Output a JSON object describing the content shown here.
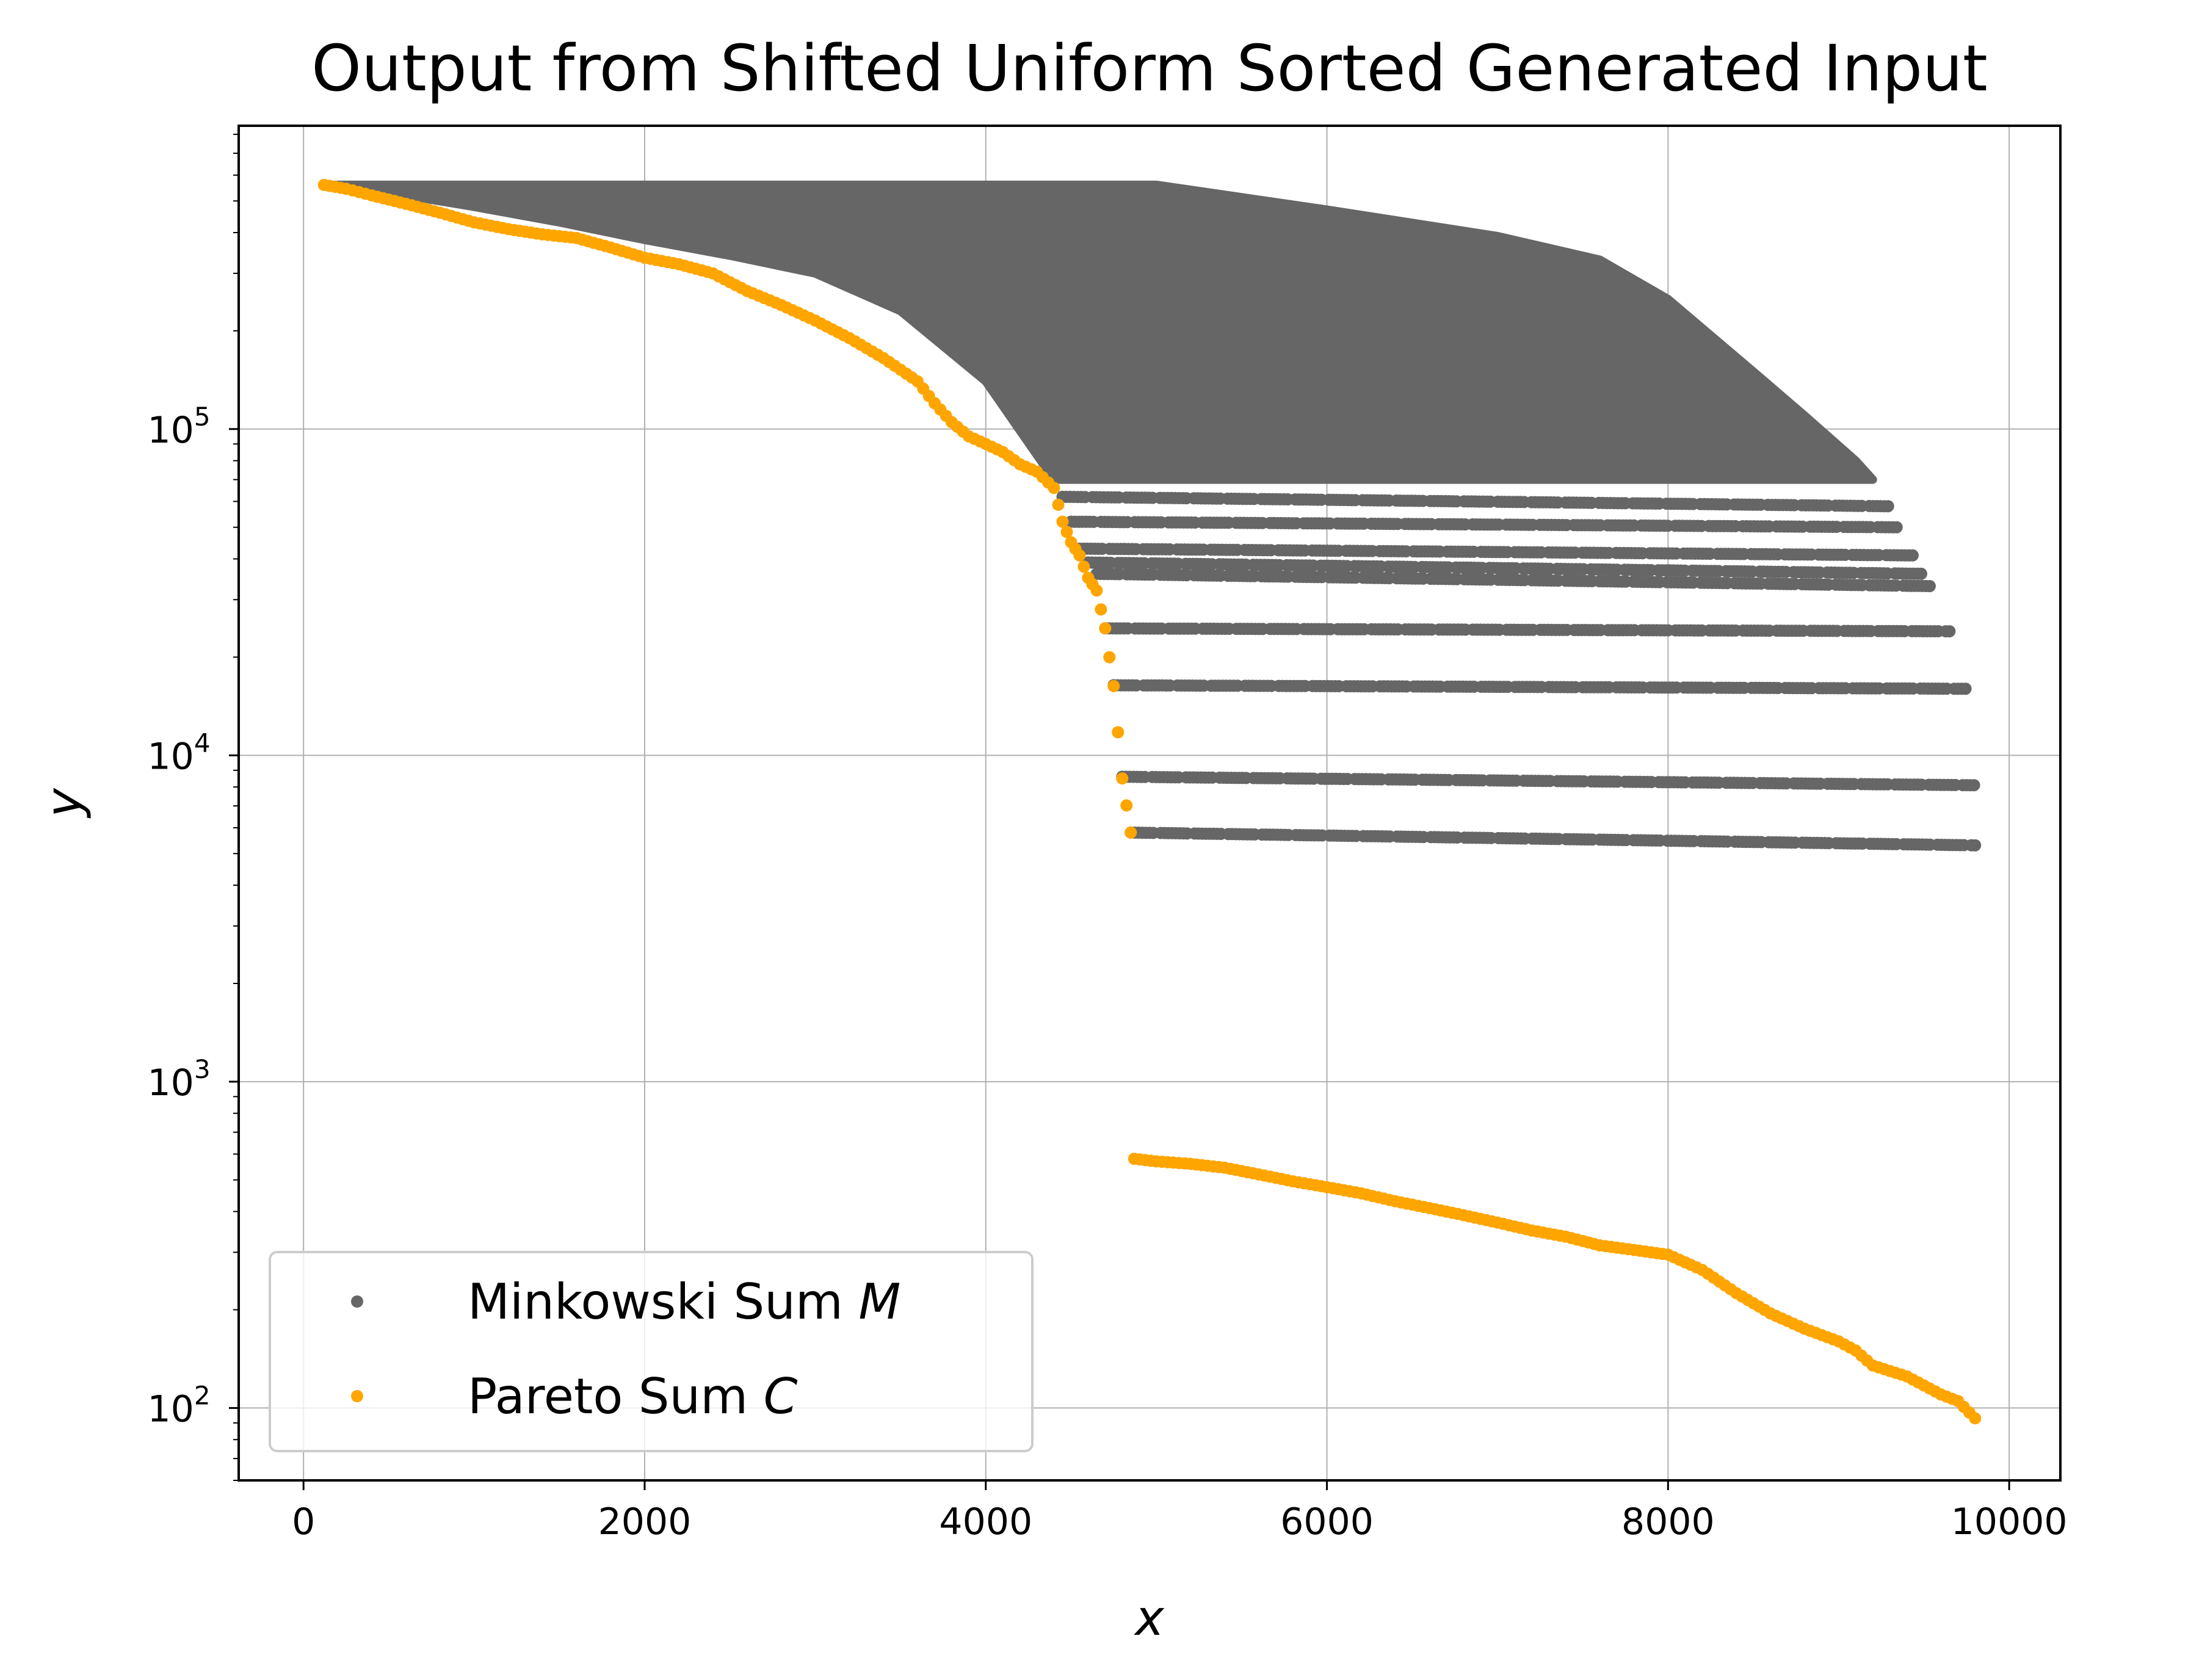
{
  "chart_data": {
    "type": "scatter",
    "title": "Output from Shifted Uniform Sorted Generated Input",
    "xlabel": "x",
    "ylabel": "y",
    "xlim": [
      -380,
      10300
    ],
    "ylim": [
      60,
      850000
    ],
    "yscale": "log",
    "grid": true,
    "legend_position": "lower-left",
    "x_ticks": [
      {
        "value": 0,
        "label": "0"
      },
      {
        "value": 2000,
        "label": "2000"
      },
      {
        "value": 4000,
        "label": "4000"
      },
      {
        "value": 6000,
        "label": "6000"
      },
      {
        "value": 8000,
        "label": "8000"
      },
      {
        "value": 10000,
        "label": "10000"
      }
    ],
    "y_ticks": [
      {
        "value": 100,
        "base": "10",
        "exp": "2"
      },
      {
        "value": 1000,
        "base": "10",
        "exp": "3"
      },
      {
        "value": 10000,
        "base": "10",
        "exp": "4"
      },
      {
        "value": 100000,
        "base": "10",
        "exp": "5"
      }
    ],
    "series": [
      {
        "name": "Minkowski Sum",
        "name_symbol": "M",
        "color": "#666666",
        "dense_region": {
          "upper_envelope": [
            [
              150,
              560000
            ],
            [
              5000,
              560000
            ],
            [
              6000,
              470000
            ],
            [
              7000,
              390000
            ],
            [
              7600,
              330000
            ],
            [
              8000,
              250000
            ],
            [
              8500,
              150000
            ],
            [
              8800,
              110000
            ],
            [
              9100,
              80000
            ],
            [
              9200,
              70000
            ],
            [
              5000,
              70000
            ],
            [
              4400,
              70000
            ],
            [
              4000,
              140000
            ],
            [
              3500,
              230000
            ],
            [
              3000,
              300000
            ],
            [
              2500,
              340000
            ],
            [
              2000,
              380000
            ],
            [
              1500,
              430000
            ],
            [
              1000,
              480000
            ],
            [
              500,
              530000
            ],
            [
              150,
              560000
            ]
          ]
        },
        "stripes": [
          {
            "y_start": 62000,
            "y_end": 58000,
            "x_start": 4450,
            "x_end": 9300
          },
          {
            "y_start": 52000,
            "y_end": 50000,
            "x_start": 4500,
            "x_end": 9350
          },
          {
            "y_start": 43000,
            "y_end": 41000,
            "x_start": 4550,
            "x_end": 9450
          },
          {
            "y_start": 39000,
            "y_end": 36000,
            "x_start": 4600,
            "x_end": 9500
          },
          {
            "y_start": 36000,
            "y_end": 33000,
            "x_start": 4650,
            "x_end": 9550
          },
          {
            "y_start": 24500,
            "y_end": 24000,
            "x_start": 4700,
            "x_end": 9650
          },
          {
            "y_start": 16400,
            "y_end": 16000,
            "x_start": 4750,
            "x_end": 9750
          },
          {
            "y_start": 8600,
            "y_end": 8100,
            "x_start": 4800,
            "x_end": 9800
          },
          {
            "y_start": 5800,
            "y_end": 5300,
            "x_start": 4850,
            "x_end": 9800
          }
        ]
      },
      {
        "name": "Pareto Sum",
        "name_symbol": "C",
        "color": "#ffa500",
        "points": [
          [
            120,
            560000
          ],
          [
            250,
            545000
          ],
          [
            400,
            520000
          ],
          [
            600,
            490000
          ],
          [
            800,
            460000
          ],
          [
            1000,
            430000
          ],
          [
            1200,
            410000
          ],
          [
            1400,
            395000
          ],
          [
            1600,
            385000
          ],
          [
            1800,
            360000
          ],
          [
            2000,
            335000
          ],
          [
            2200,
            320000
          ],
          [
            2400,
            300000
          ],
          [
            2600,
            265000
          ],
          [
            2800,
            240000
          ],
          [
            3000,
            215000
          ],
          [
            3200,
            190000
          ],
          [
            3400,
            165000
          ],
          [
            3600,
            140000
          ],
          [
            3700,
            120000
          ],
          [
            3800,
            105000
          ],
          [
            3900,
            95000
          ],
          [
            4000,
            90000
          ],
          [
            4100,
            85000
          ],
          [
            4200,
            78000
          ],
          [
            4300,
            74000
          ],
          [
            4400,
            66000
          ],
          [
            4450,
            52000
          ],
          [
            4500,
            45000
          ],
          [
            4550,
            41000
          ],
          [
            4600,
            35000
          ],
          [
            4650,
            32000
          ],
          [
            4700,
            24500
          ],
          [
            4750,
            16300
          ],
          [
            4800,
            8500
          ],
          [
            4850,
            5800
          ],
          [
            4870,
            580
          ],
          [
            5000,
            570
          ],
          [
            5200,
            560
          ],
          [
            5400,
            545
          ],
          [
            5600,
            520
          ],
          [
            5800,
            495
          ],
          [
            6000,
            475
          ],
          [
            6200,
            455
          ],
          [
            6400,
            430
          ],
          [
            6600,
            410
          ],
          [
            6800,
            390
          ],
          [
            7000,
            370
          ],
          [
            7200,
            350
          ],
          [
            7400,
            335
          ],
          [
            7600,
            315
          ],
          [
            7800,
            305
          ],
          [
            8000,
            295
          ],
          [
            8200,
            265
          ],
          [
            8400,
            225
          ],
          [
            8600,
            195
          ],
          [
            8800,
            175
          ],
          [
            9000,
            160
          ],
          [
            9100,
            150
          ],
          [
            9200,
            135
          ],
          [
            9400,
            125
          ],
          [
            9600,
            110
          ],
          [
            9700,
            105
          ],
          [
            9800,
            93
          ]
        ]
      }
    ]
  }
}
